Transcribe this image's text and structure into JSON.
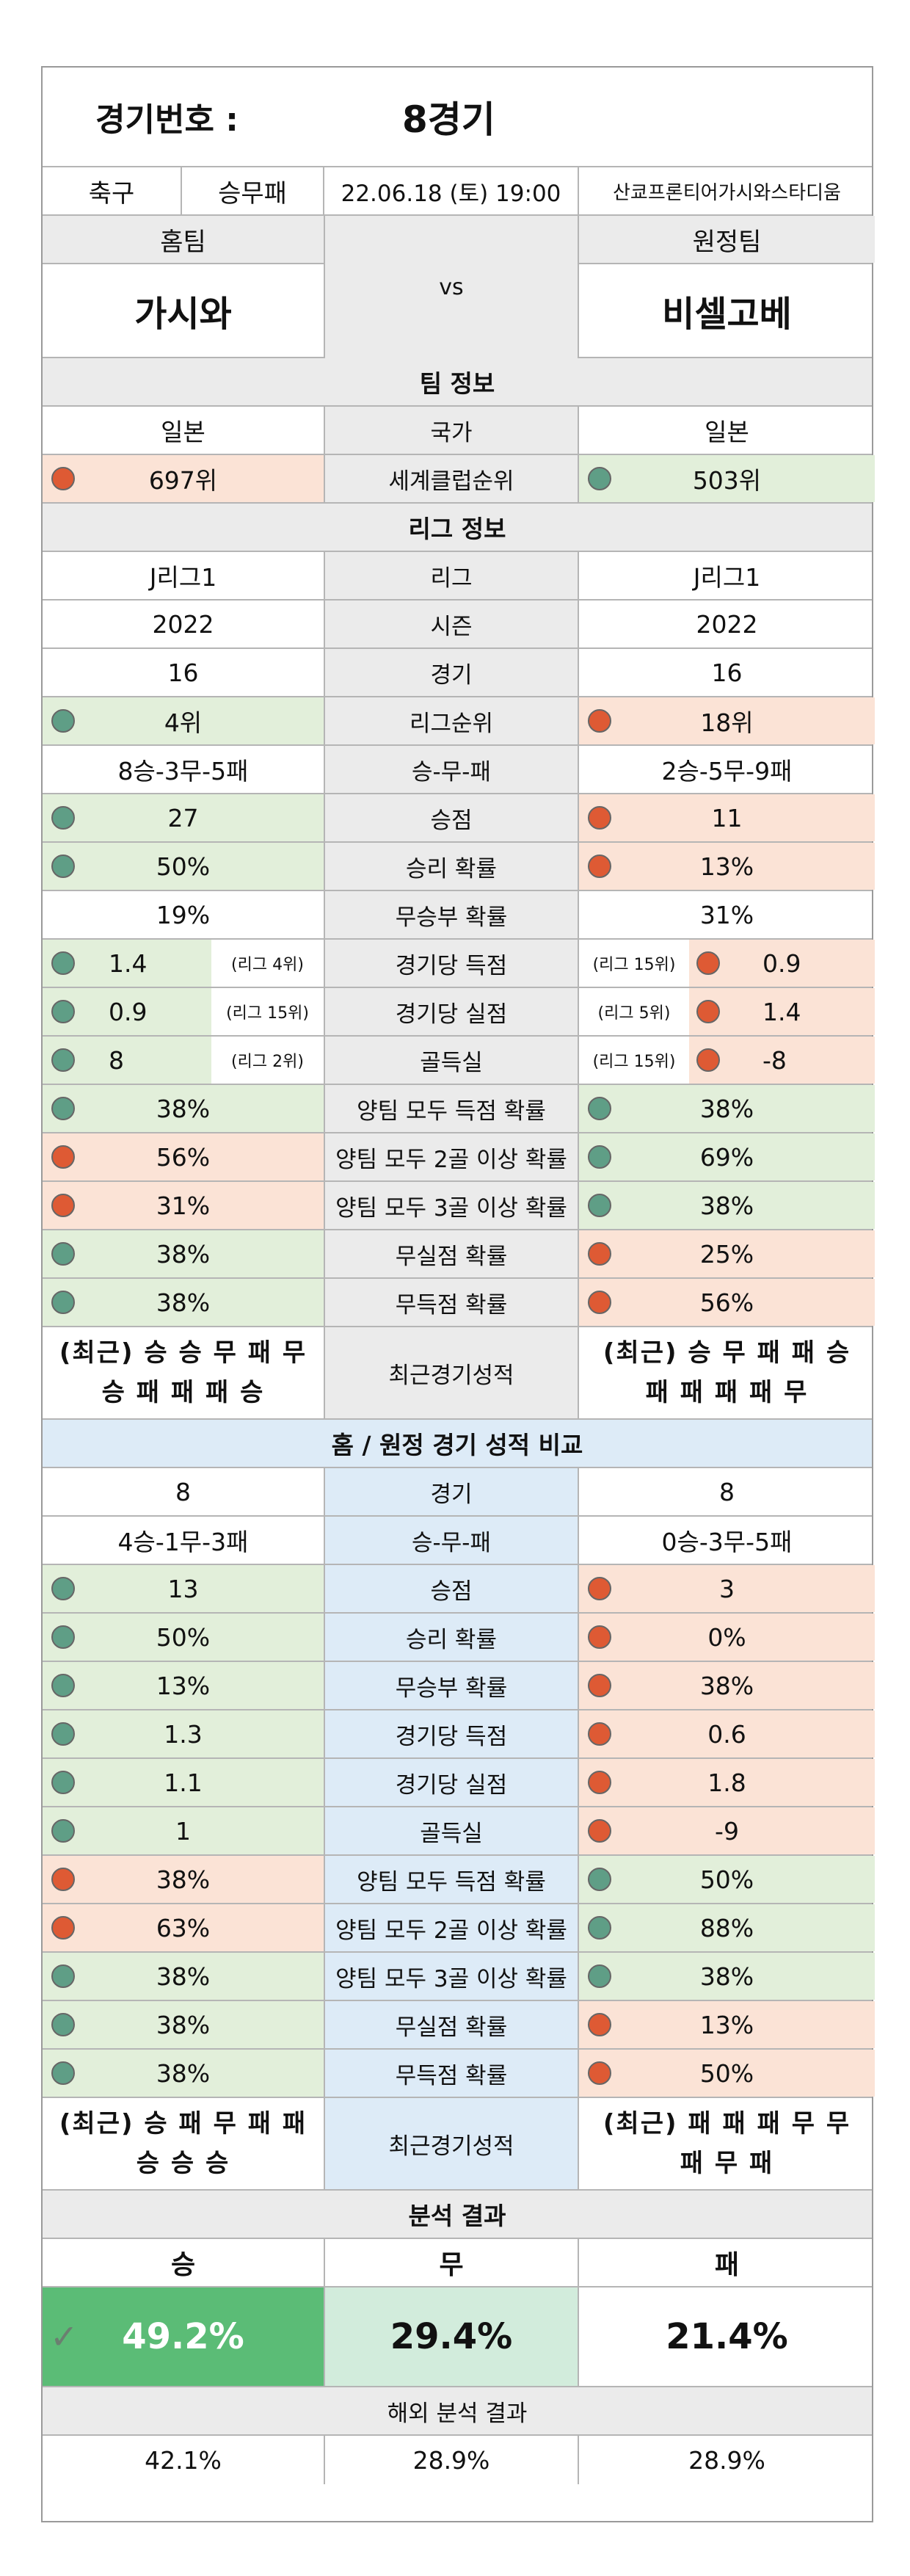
{
  "header": {
    "label": "경기번호 :",
    "value": "8경기"
  },
  "info": {
    "sport": "축구",
    "type": "승무패",
    "datetime": "22.06.18 (토) 19:00",
    "venue": "산쿄프론티어가시와스타디움"
  },
  "teams": {
    "home_label": "홈팀",
    "away_label": "원정팀",
    "vs": "vs",
    "home": "가시와",
    "away": "비셀고베"
  },
  "team_info": {
    "title": "팀 정보",
    "rows": [
      {
        "label": "국가",
        "home": "일본",
        "away": "일본"
      },
      {
        "label": "세계클럽순위",
        "home": "697위",
        "away": "503위",
        "home_dot": "red",
        "away_dot": "green"
      }
    ]
  },
  "league_info": {
    "title": "리그 정보",
    "rows": [
      {
        "label": "리그",
        "home": "J리그1",
        "away": "J리그1"
      },
      {
        "label": "시즌",
        "home": "2022",
        "away": "2022"
      },
      {
        "label": "경기",
        "home": "16",
        "away": "16"
      },
      {
        "label": "리그순위",
        "home": "4위",
        "away": "18위",
        "home_dot": "green",
        "away_dot": "red"
      },
      {
        "label": "승-무-패",
        "home": "8승-3무-5패",
        "away": "2승-5무-9패"
      },
      {
        "label": "승점",
        "home": "27",
        "away": "11",
        "home_dot": "green",
        "away_dot": "red"
      },
      {
        "label": "승리 확률",
        "home": "50%",
        "away": "13%",
        "home_dot": "green",
        "away_dot": "red"
      },
      {
        "label": "무승부 확률",
        "home": "19%",
        "away": "31%"
      },
      {
        "label": "경기당 득점",
        "home": "1.4",
        "away": "0.9",
        "home_rank": "(리그 4위)",
        "away_rank": "(리그 15위)",
        "home_dot": "green",
        "away_dot": "red"
      },
      {
        "label": "경기당 실점",
        "home": "0.9",
        "away": "1.4",
        "home_rank": "(리그 15위)",
        "away_rank": "(리그 5위)",
        "home_dot": "green",
        "away_dot": "red"
      },
      {
        "label": "골득실",
        "home": "8",
        "away": "-8",
        "home_rank": "(리그 2위)",
        "away_rank": "(리그 15위)",
        "home_dot": "green",
        "away_dot": "red"
      },
      {
        "label": "양팀 모두 득점 확률",
        "home": "38%",
        "away": "38%",
        "home_dot": "green",
        "away_dot": "green"
      },
      {
        "label": "양팀 모두 2골 이상 확률",
        "home": "56%",
        "away": "69%",
        "home_dot": "red",
        "away_dot": "green"
      },
      {
        "label": "양팀 모두 3골 이상 확률",
        "home": "31%",
        "away": "38%",
        "home_dot": "red",
        "away_dot": "green"
      },
      {
        "label": "무실점 확률",
        "home": "38%",
        "away": "25%",
        "home_dot": "green",
        "away_dot": "red"
      },
      {
        "label": "무득점 확률",
        "home": "38%",
        "away": "56%",
        "home_dot": "green",
        "away_dot": "red"
      }
    ],
    "recent": {
      "label": "최근경기성적",
      "home": "(최근) 승 승 무 패 무\n승 패 패 패 승",
      "away": "(최근) 승 무 패 패 승\n패 패 패 패 무"
    }
  },
  "homeaway": {
    "title": "홈 / 원정 경기 성적 비교",
    "rows": [
      {
        "label": "경기",
        "home": "8",
        "away": "8"
      },
      {
        "label": "승-무-패",
        "home": "4승-1무-3패",
        "away": "0승-3무-5패"
      },
      {
        "label": "승점",
        "home": "13",
        "away": "3",
        "home_dot": "green",
        "away_dot": "red"
      },
      {
        "label": "승리 확률",
        "home": "50%",
        "away": "0%",
        "home_dot": "green",
        "away_dot": "red"
      },
      {
        "label": "무승부 확률",
        "home": "13%",
        "away": "38%",
        "home_dot": "green",
        "away_dot": "red"
      },
      {
        "label": "경기당 득점",
        "home": "1.3",
        "away": "0.6",
        "home_dot": "green",
        "away_dot": "red"
      },
      {
        "label": "경기당 실점",
        "home": "1.1",
        "away": "1.8",
        "home_dot": "green",
        "away_dot": "red"
      },
      {
        "label": "골득실",
        "home": "1",
        "away": "-9",
        "home_dot": "green",
        "away_dot": "red"
      },
      {
        "label": "양팀 모두 득점 확률",
        "home": "38%",
        "away": "50%",
        "home_dot": "red",
        "away_dot": "green"
      },
      {
        "label": "양팀 모두 2골 이상 확률",
        "home": "63%",
        "away": "88%",
        "home_dot": "red",
        "away_dot": "green"
      },
      {
        "label": "양팀 모두 3골 이상 확률",
        "home": "38%",
        "away": "38%",
        "home_dot": "green",
        "away_dot": "green"
      },
      {
        "label": "무실점 확률",
        "home": "38%",
        "away": "13%",
        "home_dot": "green",
        "away_dot": "red"
      },
      {
        "label": "무득점 확률",
        "home": "38%",
        "away": "50%",
        "home_dot": "green",
        "away_dot": "red"
      }
    ],
    "recent": {
      "label": "최근경기성적",
      "home": "(최근) 승 패 무 패 패\n승 승 승",
      "away": "(최근) 패 패 패 무 무\n패 무 패"
    }
  },
  "analysis": {
    "title": "분석 결과",
    "labels": {
      "win": "승",
      "draw": "무",
      "loss": "패"
    },
    "values": {
      "win": "49.2%",
      "draw": "29.4%",
      "loss": "21.4%"
    },
    "overseas_title": "해외 분석 결과",
    "overseas": {
      "win": "42.1%",
      "draw": "28.9%",
      "loss": "28.9%"
    }
  },
  "colors": {
    "green_cell": "#e2efda",
    "red_cell": "#fbe3d6",
    "grey_cell": "#ebebeb",
    "blue_cell": "#ddebf7",
    "win_cell": "#5bbc76",
    "dot_green": "#5f9e86",
    "dot_red": "#de5a34"
  }
}
